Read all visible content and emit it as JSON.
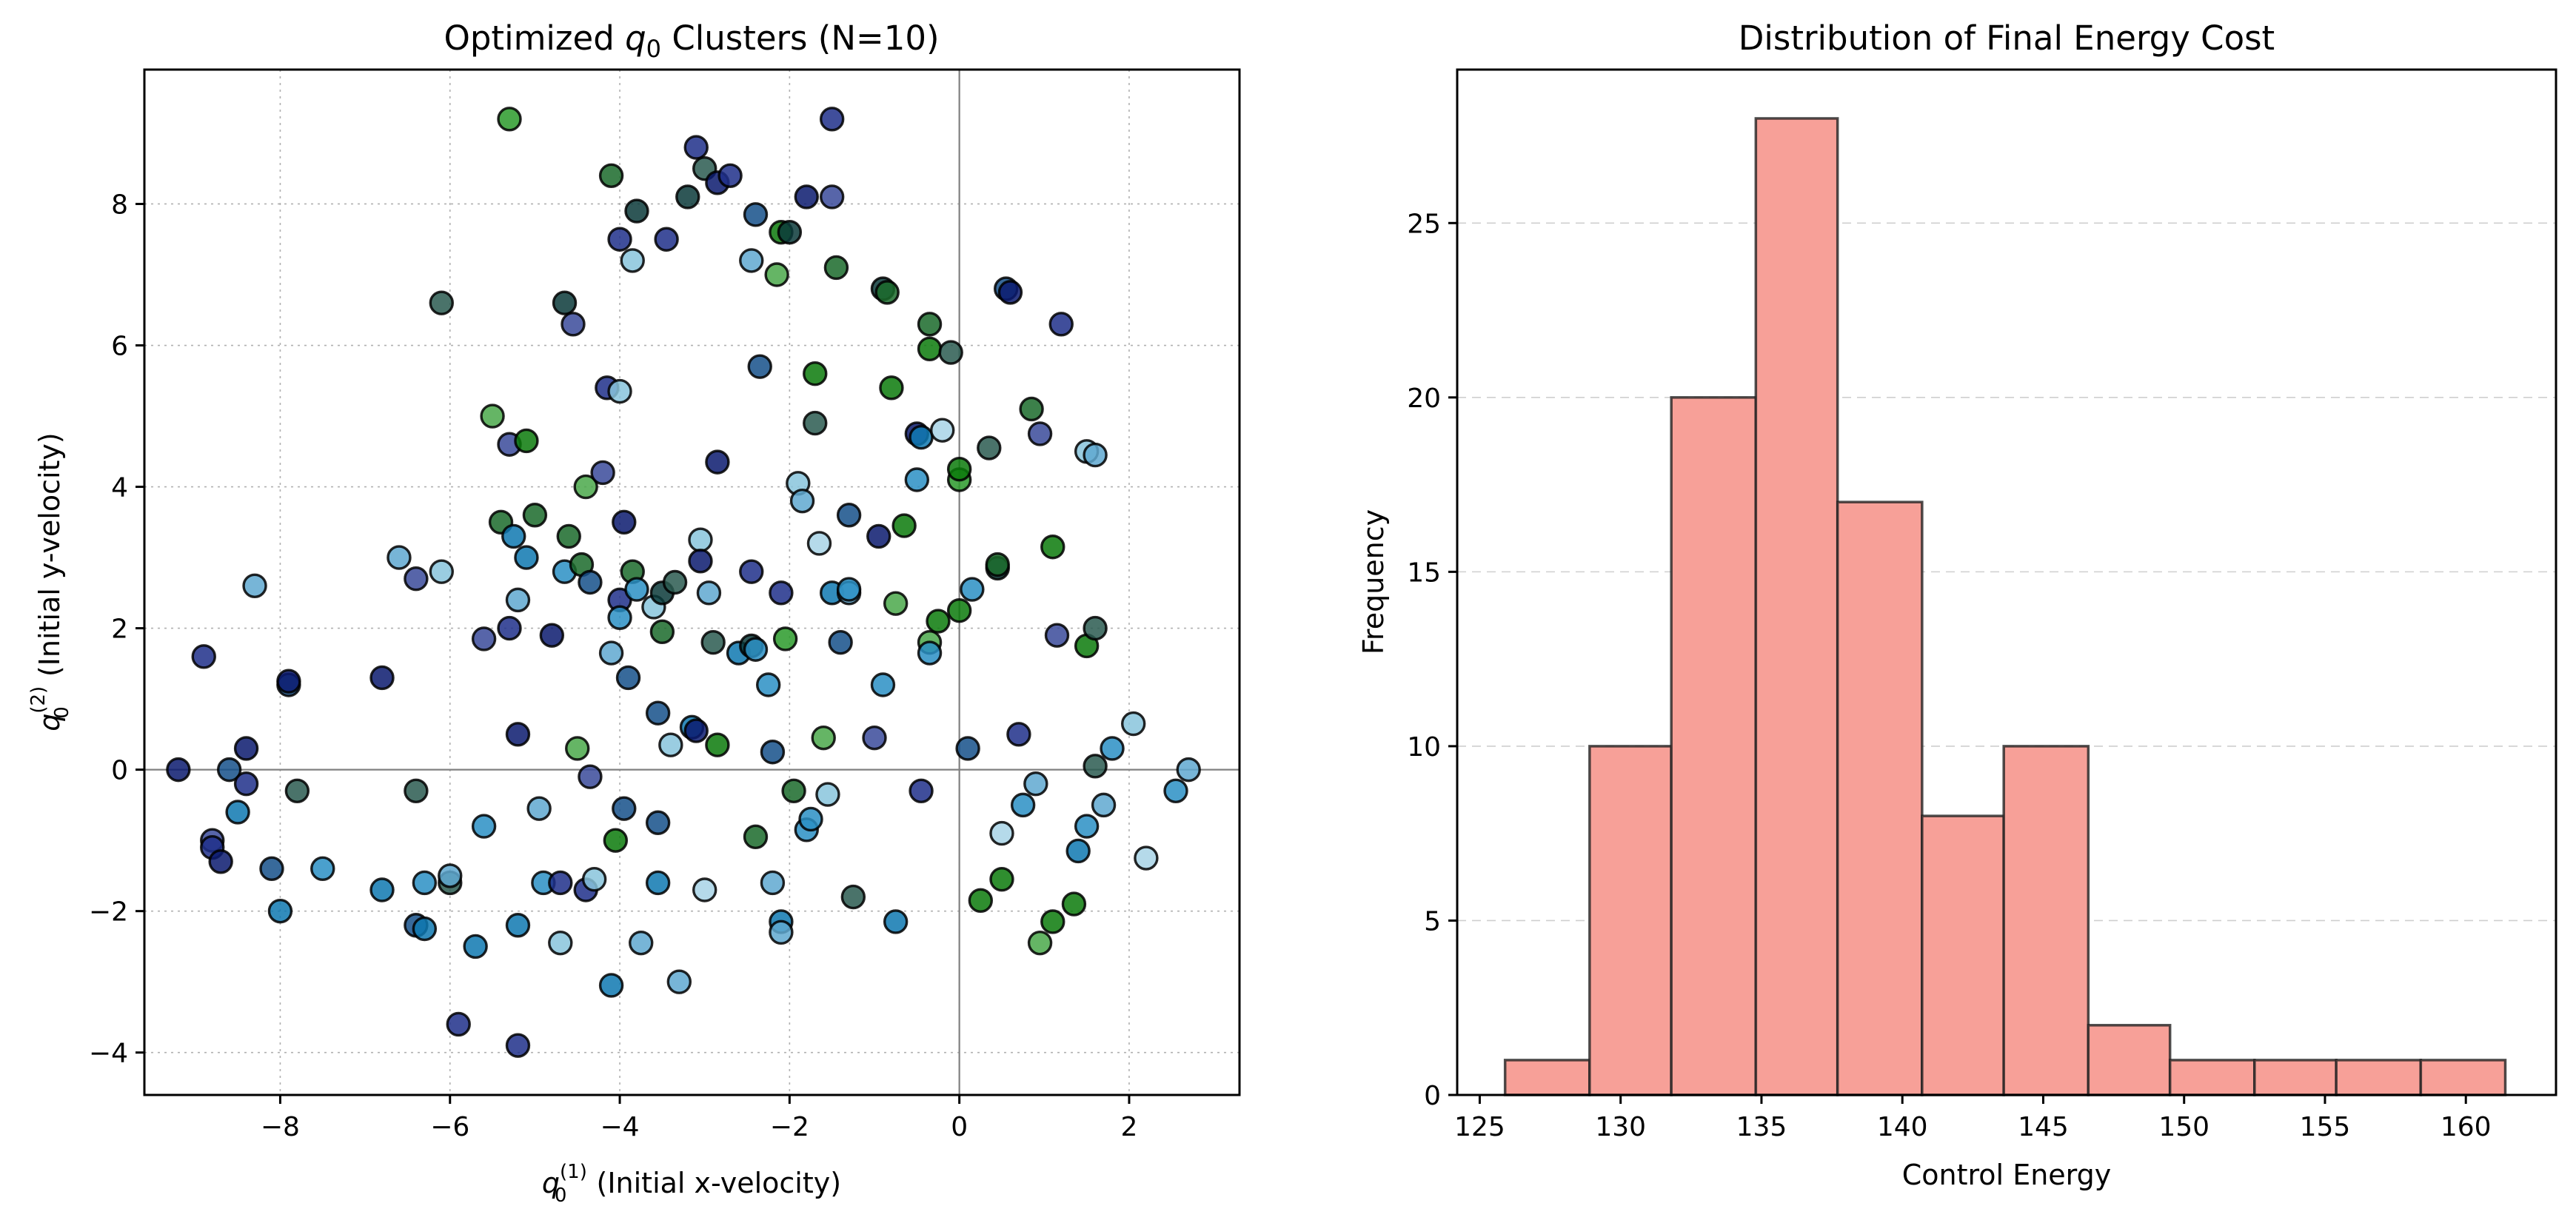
{
  "chart_data": [
    {
      "type": "scatter",
      "title_prefix": "Optimized ",
      "title_symbol": "q",
      "title_subscript": "0",
      "title_suffix": " Clusters (N=10)",
      "xlabel_symbol": "q",
      "xlabel_sub": "0",
      "xlabel_sup": "(1)",
      "xlabel_text": " (Initial x-velocity)",
      "ylabel_symbol": "q",
      "ylabel_sub": "0",
      "ylabel_sup": "(2)",
      "ylabel_text": " (Initial y-velocity)",
      "xlim": [
        -9.6,
        3.3
      ],
      "ylim": [
        -4.6,
        9.9
      ],
      "xticks": [
        -8,
        -6,
        -4,
        -2,
        0,
        2
      ],
      "xtick_labels": [
        "−8",
        "−6",
        "−4",
        "−2",
        "0",
        "2"
      ],
      "yticks": [
        -4,
        -2,
        0,
        2,
        4,
        6,
        8
      ],
      "ytick_labels": [
        "−4",
        "−2",
        "0",
        "2",
        "4",
        "6",
        "8"
      ],
      "grid": true,
      "zero_lines": true,
      "palette": [
        "#0a1a6e",
        "#1f2f8a",
        "#3a4a9a",
        "#15508a",
        "#0e78b0",
        "#2a8fc4",
        "#5fa8d0",
        "#88c4dc",
        "#a8d4e6",
        "#0a3a3a",
        "#2a5a50",
        "#1a6a2a",
        "#0a7a0a",
        "#2a9a2a",
        "#4aa84a"
      ],
      "points": [
        [
          -9.2,
          0.0,
          0
        ],
        [
          -8.9,
          1.6,
          1
        ],
        [
          -8.8,
          -1.0,
          2
        ],
        [
          -8.8,
          -1.1,
          1
        ],
        [
          -8.7,
          -1.3,
          0
        ],
        [
          -8.6,
          0.0,
          3
        ],
        [
          -8.5,
          -0.6,
          4
        ],
        [
          -8.4,
          0.3,
          0
        ],
        [
          -8.4,
          -0.2,
          1
        ],
        [
          -8.3,
          2.6,
          6
        ],
        [
          -8.1,
          -1.4,
          3
        ],
        [
          -8.0,
          -2.0,
          4
        ],
        [
          -7.9,
          1.2,
          3
        ],
        [
          -7.9,
          1.25,
          0
        ],
        [
          -7.8,
          -0.3,
          10
        ],
        [
          -7.5,
          -1.4,
          5
        ],
        [
          -6.8,
          1.3,
          0
        ],
        [
          -6.8,
          -1.7,
          4
        ],
        [
          -6.6,
          3.0,
          6
        ],
        [
          -6.4,
          2.7,
          2
        ],
        [
          -6.4,
          -0.3,
          10
        ],
        [
          -6.4,
          -2.2,
          3
        ],
        [
          -6.3,
          -2.25,
          4
        ],
        [
          -6.3,
          -1.6,
          5
        ],
        [
          -6.1,
          2.8,
          7
        ],
        [
          -6.1,
          6.6,
          10
        ],
        [
          -6.0,
          -1.6,
          10
        ],
        [
          -6.0,
          -1.5,
          6
        ],
        [
          -5.9,
          -3.6,
          1
        ],
        [
          -5.7,
          -2.5,
          4
        ],
        [
          -5.6,
          1.85,
          2
        ],
        [
          -5.6,
          -0.8,
          5
        ],
        [
          -5.5,
          5.0,
          14
        ],
        [
          -5.4,
          3.5,
          11
        ],
        [
          -5.3,
          4.6,
          2
        ],
        [
          -5.3,
          9.2,
          13
        ],
        [
          -5.3,
          2.0,
          1
        ],
        [
          -5.25,
          3.3,
          4
        ],
        [
          -5.2,
          0.5,
          0
        ],
        [
          -5.2,
          -2.2,
          4
        ],
        [
          -5.2,
          -3.9,
          1
        ],
        [
          -5.2,
          2.4,
          6
        ],
        [
          -5.1,
          3.0,
          4
        ],
        [
          -5.1,
          4.65,
          12
        ],
        [
          -5.0,
          3.6,
          11
        ],
        [
          -4.95,
          -0.55,
          6
        ],
        [
          -4.9,
          -1.6,
          5
        ],
        [
          -4.8,
          1.9,
          0
        ],
        [
          -4.7,
          -1.6,
          1
        ],
        [
          -4.7,
          -2.45,
          7
        ],
        [
          -4.65,
          2.8,
          5
        ],
        [
          -4.65,
          6.6,
          9
        ],
        [
          -4.6,
          3.3,
          11
        ],
        [
          -4.55,
          6.3,
          2
        ],
        [
          -4.5,
          0.3,
          14
        ],
        [
          -4.45,
          2.9,
          11
        ],
        [
          -4.4,
          4.0,
          14
        ],
        [
          -4.4,
          -1.7,
          1
        ],
        [
          -4.35,
          -0.1,
          2
        ],
        [
          -4.35,
          2.65,
          3
        ],
        [
          -4.3,
          -1.55,
          7
        ],
        [
          -4.2,
          4.2,
          2
        ],
        [
          -4.15,
          5.4,
          1
        ],
        [
          -4.1,
          8.4,
          11
        ],
        [
          -4.1,
          -3.05,
          4
        ],
        [
          -4.1,
          1.65,
          6
        ],
        [
          -4.05,
          -1.0,
          12
        ],
        [
          -4.0,
          7.5,
          1
        ],
        [
          -4.0,
          2.4,
          1
        ],
        [
          -4.0,
          2.15,
          5
        ],
        [
          -4.0,
          5.35,
          7
        ],
        [
          -3.95,
          -0.55,
          3
        ],
        [
          -3.95,
          3.5,
          0
        ],
        [
          -3.9,
          1.3,
          3
        ],
        [
          -3.85,
          2.8,
          11
        ],
        [
          -3.85,
          7.2,
          7
        ],
        [
          -3.8,
          7.9,
          9
        ],
        [
          -3.8,
          2.55,
          5
        ],
        [
          -3.75,
          -2.45,
          6
        ],
        [
          -3.6,
          2.3,
          7
        ],
        [
          -3.55,
          0.8,
          3
        ],
        [
          -3.55,
          -0.75,
          3
        ],
        [
          -3.55,
          -1.6,
          4
        ],
        [
          -3.5,
          1.95,
          11
        ],
        [
          -3.5,
          2.5,
          9
        ],
        [
          -3.45,
          7.5,
          1
        ],
        [
          -3.4,
          0.35,
          7
        ],
        [
          -3.35,
          2.65,
          10
        ],
        [
          -3.3,
          -3.0,
          6
        ],
        [
          -3.2,
          8.1,
          9
        ],
        [
          -3.15,
          0.6,
          4
        ],
        [
          -3.1,
          0.55,
          0
        ],
        [
          -3.1,
          8.8,
          1
        ],
        [
          -3.05,
          3.25,
          7
        ],
        [
          -3.05,
          2.95,
          0
        ],
        [
          -3.0,
          8.5,
          10
        ],
        [
          -3.0,
          -1.7,
          8
        ],
        [
          -2.95,
          2.5,
          6
        ],
        [
          -2.9,
          1.8,
          10
        ],
        [
          -2.85,
          8.3,
          0
        ],
        [
          -2.85,
          4.35,
          0
        ],
        [
          -2.85,
          0.35,
          12
        ],
        [
          -2.7,
          8.4,
          1
        ],
        [
          -2.6,
          1.65,
          4
        ],
        [
          -2.45,
          2.8,
          1
        ],
        [
          -2.45,
          1.75,
          9
        ],
        [
          -2.45,
          7.2,
          6
        ],
        [
          -2.4,
          1.7,
          5
        ],
        [
          -2.4,
          7.85,
          3
        ],
        [
          -2.4,
          -0.95,
          11
        ],
        [
          -2.35,
          5.7,
          3
        ],
        [
          -2.25,
          1.2,
          5
        ],
        [
          -2.2,
          -1.6,
          6
        ],
        [
          -2.2,
          0.25,
          3
        ],
        [
          -2.15,
          7.0,
          14
        ],
        [
          -2.1,
          -2.15,
          4
        ],
        [
          -2.1,
          -2.3,
          6
        ],
        [
          -2.1,
          7.6,
          12
        ],
        [
          -2.1,
          2.5,
          1
        ],
        [
          -2.05,
          1.85,
          13
        ],
        [
          -2.0,
          7.6,
          9
        ],
        [
          -1.95,
          -0.3,
          11
        ],
        [
          -1.9,
          4.05,
          7
        ],
        [
          -1.85,
          3.8,
          6
        ],
        [
          -1.8,
          -0.85,
          5
        ],
        [
          -1.8,
          8.1,
          0
        ],
        [
          -1.75,
          -0.7,
          5
        ],
        [
          -1.7,
          4.9,
          10
        ],
        [
          -1.7,
          5.6,
          12
        ],
        [
          -1.65,
          3.2,
          8
        ],
        [
          -1.6,
          0.45,
          14
        ],
        [
          -1.55,
          -0.35,
          7
        ],
        [
          -1.5,
          9.2,
          1
        ],
        [
          -1.5,
          8.1,
          2
        ],
        [
          -1.5,
          2.5,
          4
        ],
        [
          -1.45,
          7.1,
          11
        ],
        [
          -1.4,
          1.8,
          3
        ],
        [
          -1.3,
          2.5,
          6
        ],
        [
          -1.3,
          2.55,
          5
        ],
        [
          -1.3,
          3.6,
          3
        ],
        [
          -1.25,
          -1.8,
          10
        ],
        [
          -1.0,
          0.45,
          2
        ],
        [
          -0.95,
          3.3,
          0
        ],
        [
          -0.9,
          6.8,
          9
        ],
        [
          -0.9,
          1.2,
          5
        ],
        [
          -0.85,
          6.75,
          11
        ],
        [
          -0.8,
          5.4,
          12
        ],
        [
          -0.75,
          2.35,
          14
        ],
        [
          -0.75,
          -2.15,
          4
        ],
        [
          -0.65,
          3.45,
          12
        ],
        [
          -0.5,
          4.75,
          0
        ],
        [
          -0.5,
          4.1,
          5
        ],
        [
          -0.45,
          4.7,
          4
        ],
        [
          -0.45,
          -0.3,
          1
        ],
        [
          -0.35,
          6.3,
          11
        ],
        [
          -0.35,
          5.95,
          12
        ],
        [
          -0.35,
          1.8,
          14
        ],
        [
          -0.35,
          1.65,
          5
        ],
        [
          -0.25,
          2.1,
          12
        ],
        [
          -0.2,
          4.8,
          8
        ],
        [
          -0.1,
          5.9,
          10
        ],
        [
          0.0,
          4.1,
          13
        ],
        [
          0.0,
          4.25,
          12
        ],
        [
          0.0,
          2.25,
          12
        ],
        [
          0.1,
          0.3,
          3
        ],
        [
          0.15,
          2.55,
          5
        ],
        [
          0.25,
          -1.85,
          12
        ],
        [
          0.35,
          4.55,
          10
        ],
        [
          0.45,
          2.85,
          9
        ],
        [
          0.45,
          2.9,
          11
        ],
        [
          0.5,
          -0.9,
          8
        ],
        [
          0.5,
          -1.55,
          12
        ],
        [
          0.55,
          6.8,
          3
        ],
        [
          0.6,
          6.75,
          0
        ],
        [
          0.7,
          0.5,
          1
        ],
        [
          0.75,
          -0.5,
          5
        ],
        [
          0.85,
          5.1,
          11
        ],
        [
          0.9,
          -0.2,
          6
        ],
        [
          0.95,
          4.75,
          2
        ],
        [
          0.95,
          -2.45,
          14
        ],
        [
          1.1,
          3.15,
          12
        ],
        [
          1.1,
          -2.15,
          12
        ],
        [
          1.15,
          1.9,
          2
        ],
        [
          1.2,
          6.3,
          1
        ],
        [
          1.35,
          -1.9,
          12
        ],
        [
          1.4,
          -1.15,
          4
        ],
        [
          1.5,
          1.75,
          12
        ],
        [
          1.5,
          4.5,
          7
        ],
        [
          1.5,
          -0.8,
          5
        ],
        [
          1.6,
          2.0,
          10
        ],
        [
          1.6,
          0.05,
          10
        ],
        [
          1.6,
          4.45,
          6
        ],
        [
          1.7,
          -0.5,
          6
        ],
        [
          1.8,
          0.3,
          5
        ],
        [
          2.05,
          0.65,
          7
        ],
        [
          2.2,
          -1.25,
          8
        ],
        [
          2.55,
          -0.3,
          5
        ],
        [
          2.7,
          0.0,
          6
        ]
      ]
    },
    {
      "type": "bar",
      "title": "Distribution of Final Energy Cost",
      "xlabel": "Control Energy",
      "ylabel": "Frequency",
      "xlim": [
        124.2,
        163.2
      ],
      "ylim": [
        0,
        29.4
      ],
      "xticks": [
        125,
        130,
        135,
        140,
        145,
        150,
        155,
        160
      ],
      "xtick_labels": [
        "125",
        "130",
        "135",
        "140",
        "145",
        "150",
        "155",
        "160"
      ],
      "yticks": [
        0,
        5,
        10,
        15,
        20,
        25
      ],
      "ytick_labels": [
        "0",
        "5",
        "10",
        "15",
        "20",
        "25"
      ],
      "bin_edges": [
        125.9,
        128.9,
        131.8,
        134.8,
        137.7,
        140.7,
        143.6,
        146.6,
        149.5,
        152.5,
        155.4,
        158.4,
        161.4
      ],
      "values": [
        1,
        10,
        20,
        28,
        17,
        8,
        10,
        2,
        1,
        1,
        1,
        1
      ],
      "bar_color": "#f7a098"
    }
  ]
}
